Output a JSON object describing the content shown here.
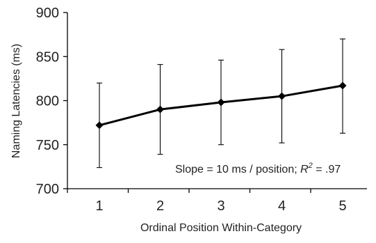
{
  "chart_data": {
    "type": "line",
    "title": "",
    "xlabel": "Ordinal Position Within-Category",
    "ylabel": "Naming Latencies (ms)",
    "x": [
      1,
      2,
      3,
      4,
      5
    ],
    "x_tick_labels": [
      "1",
      "2",
      "3",
      "4",
      "5"
    ],
    "y_ticks": [
      700,
      750,
      800,
      850,
      900
    ],
    "y_tick_labels": [
      "700",
      "750",
      "800",
      "850",
      "900"
    ],
    "ylim": [
      700,
      900
    ],
    "grid": false,
    "series": [
      {
        "values": [
          772,
          790,
          798,
          805,
          817
        ],
        "error_upper": [
          820,
          841,
          846,
          858,
          870
        ],
        "error_lower": [
          724,
          739,
          750,
          752,
          763
        ],
        "marker": "diamond",
        "color": "#000000"
      }
    ],
    "annotation": {
      "text_prefix": "Slope = 10 ms / position; ",
      "r_symbol": "R",
      "r_exponent": "2",
      "text_suffix": " = .97"
    }
  }
}
